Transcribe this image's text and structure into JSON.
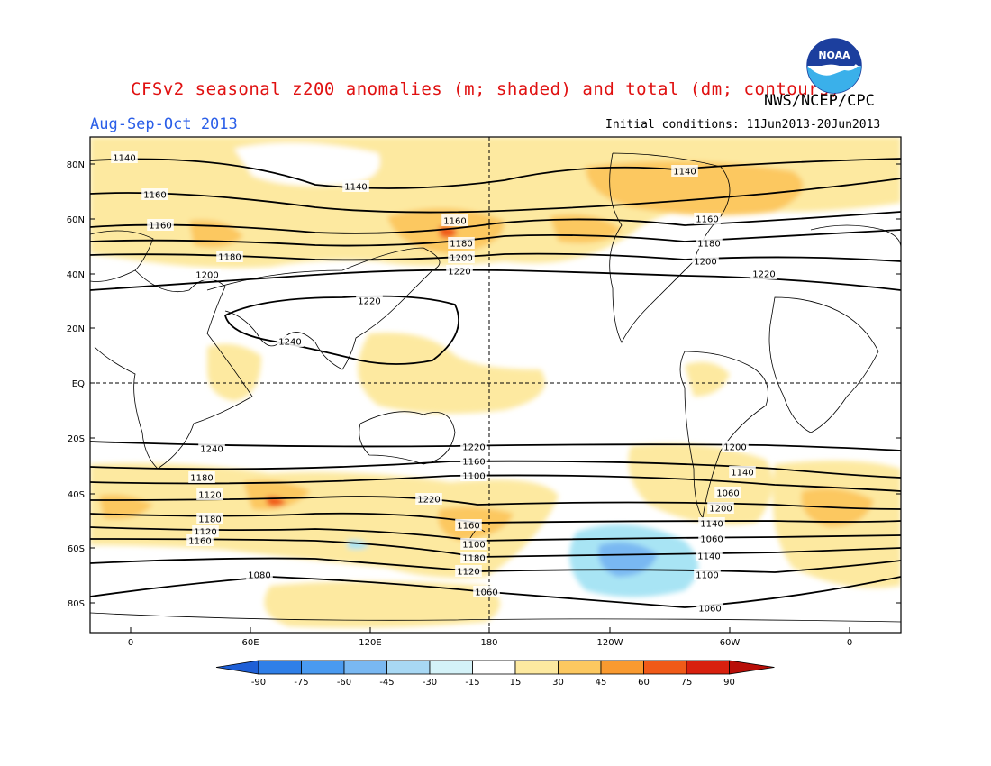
{
  "title": "CFSv2 seasonal z200 anomalies (m; shaded) and total (dm; contours)",
  "agency": "NWS/NCEP/CPC",
  "logo_text": "NOAA",
  "period": "Aug-Sep-Oct 2013",
  "initial_conditions": "Initial conditions: 11Jun2013-20Jun2013",
  "map": {
    "lat_ticks": [
      "80N",
      "60N",
      "40N",
      "20N",
      "EQ",
      "20S",
      "40S",
      "60S",
      "80S"
    ],
    "lon_ticks": [
      "0",
      "60E",
      "120E",
      "180",
      "120W",
      "60W",
      "0"
    ],
    "contour_labels": [
      "1140",
      "1140",
      "1140",
      "1160",
      "1160",
      "1160",
      "1160",
      "1180",
      "1180",
      "1180",
      "1200",
      "1200",
      "1200",
      "1220",
      "1220",
      "1220",
      "1240",
      "1240",
      "1220",
      "1200",
      "1180",
      "1160",
      "1140",
      "1120",
      "1100",
      "1060",
      "1220",
      "1200",
      "1180",
      "1160",
      "1140",
      "1120",
      "1100",
      "1060",
      "1160",
      "1180",
      "1140",
      "1120",
      "1100",
      "1080",
      "1060",
      "1060"
    ]
  },
  "colorbar": {
    "labels": [
      "-90",
      "-75",
      "-60",
      "-45",
      "-30",
      "-15",
      "15",
      "30",
      "45",
      "60",
      "75",
      "90"
    ],
    "colors": [
      "#1e5fd6",
      "#2f7fe8",
      "#4a9af0",
      "#79b8f2",
      "#a8d8f4",
      "#d4f2f8",
      "#ffffff",
      "#fde9a0",
      "#fcc860",
      "#f99a30",
      "#f05a18",
      "#d8200e",
      "#b80e08"
    ]
  }
}
